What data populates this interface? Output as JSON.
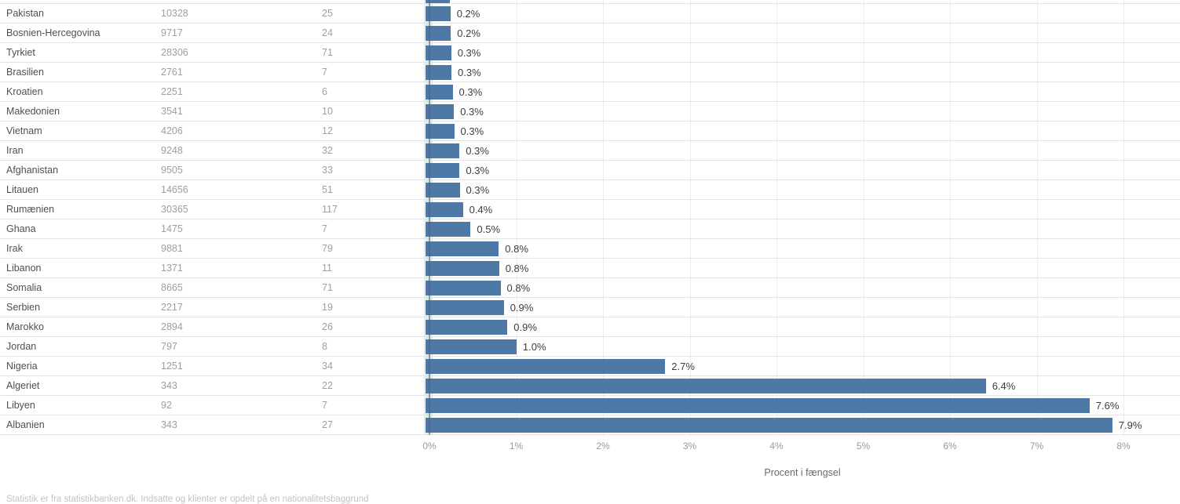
{
  "colors": {
    "bar": "#4e79a7"
  },
  "axis": {
    "ticks": [
      "0%",
      "1%",
      "2%",
      "3%",
      "4%",
      "5%",
      "6%",
      "7%",
      "8%"
    ],
    "title": "Procent i fængsel"
  },
  "caption": "Statistik er fra statistikbanken.dk. Indsatte og klienter er opdelt på en nationalitetsbaggrund",
  "chart_data": {
    "type": "bar",
    "title": "",
    "xlabel": "Procent i fængsel",
    "ylabel": "",
    "xlim": [
      0,
      8
    ],
    "x_tick_labels": [
      "0%",
      "1%",
      "2%",
      "3%",
      "4%",
      "5%",
      "6%",
      "7%",
      "8%"
    ],
    "grid": true,
    "orientation": "horizontal",
    "rows": [
      {
        "country": "Pakistan",
        "population": 10328,
        "prisoners": 25,
        "pct_label": "0.2%"
      },
      {
        "country": "Bosnien-Hercegovina",
        "population": 9717,
        "prisoners": 24,
        "pct_label": "0.2%"
      },
      {
        "country": "Tyrkiet",
        "population": 28306,
        "prisoners": 71,
        "pct_label": "0.3%"
      },
      {
        "country": "Brasilien",
        "population": 2761,
        "prisoners": 7,
        "pct_label": "0.3%"
      },
      {
        "country": "Kroatien",
        "population": 2251,
        "prisoners": 6,
        "pct_label": "0.3%"
      },
      {
        "country": "Makedonien",
        "population": 3541,
        "prisoners": 10,
        "pct_label": "0.3%"
      },
      {
        "country": "Vietnam",
        "population": 4206,
        "prisoners": 12,
        "pct_label": "0.3%"
      },
      {
        "country": "Iran",
        "population": 9248,
        "prisoners": 32,
        "pct_label": "0.3%"
      },
      {
        "country": "Afghanistan",
        "population": 9505,
        "prisoners": 33,
        "pct_label": "0.3%"
      },
      {
        "country": "Litauen",
        "population": 14656,
        "prisoners": 51,
        "pct_label": "0.3%"
      },
      {
        "country": "Rumænien",
        "population": 30365,
        "prisoners": 117,
        "pct_label": "0.4%"
      },
      {
        "country": "Ghana",
        "population": 1475,
        "prisoners": 7,
        "pct_label": "0.5%"
      },
      {
        "country": "Irak",
        "population": 9881,
        "prisoners": 79,
        "pct_label": "0.8%"
      },
      {
        "country": "Libanon",
        "population": 1371,
        "prisoners": 11,
        "pct_label": "0.8%"
      },
      {
        "country": "Somalia",
        "population": 8665,
        "prisoners": 71,
        "pct_label": "0.8%"
      },
      {
        "country": "Serbien",
        "population": 2217,
        "prisoners": 19,
        "pct_label": "0.9%"
      },
      {
        "country": "Marokko",
        "population": 2894,
        "prisoners": 26,
        "pct_label": "0.9%"
      },
      {
        "country": "Jordan",
        "population": 797,
        "prisoners": 8,
        "pct_label": "1.0%"
      },
      {
        "country": "Nigeria",
        "population": 1251,
        "prisoners": 34,
        "pct_label": "2.7%"
      },
      {
        "country": "Algeriet",
        "population": 343,
        "prisoners": 22,
        "pct_label": "6.4%"
      },
      {
        "country": "Libyen",
        "population": 92,
        "prisoners": 7,
        "pct_label": "7.6%"
      },
      {
        "country": "Albanien",
        "population": 343,
        "prisoners": 27,
        "pct_label": "7.9%"
      }
    ]
  }
}
